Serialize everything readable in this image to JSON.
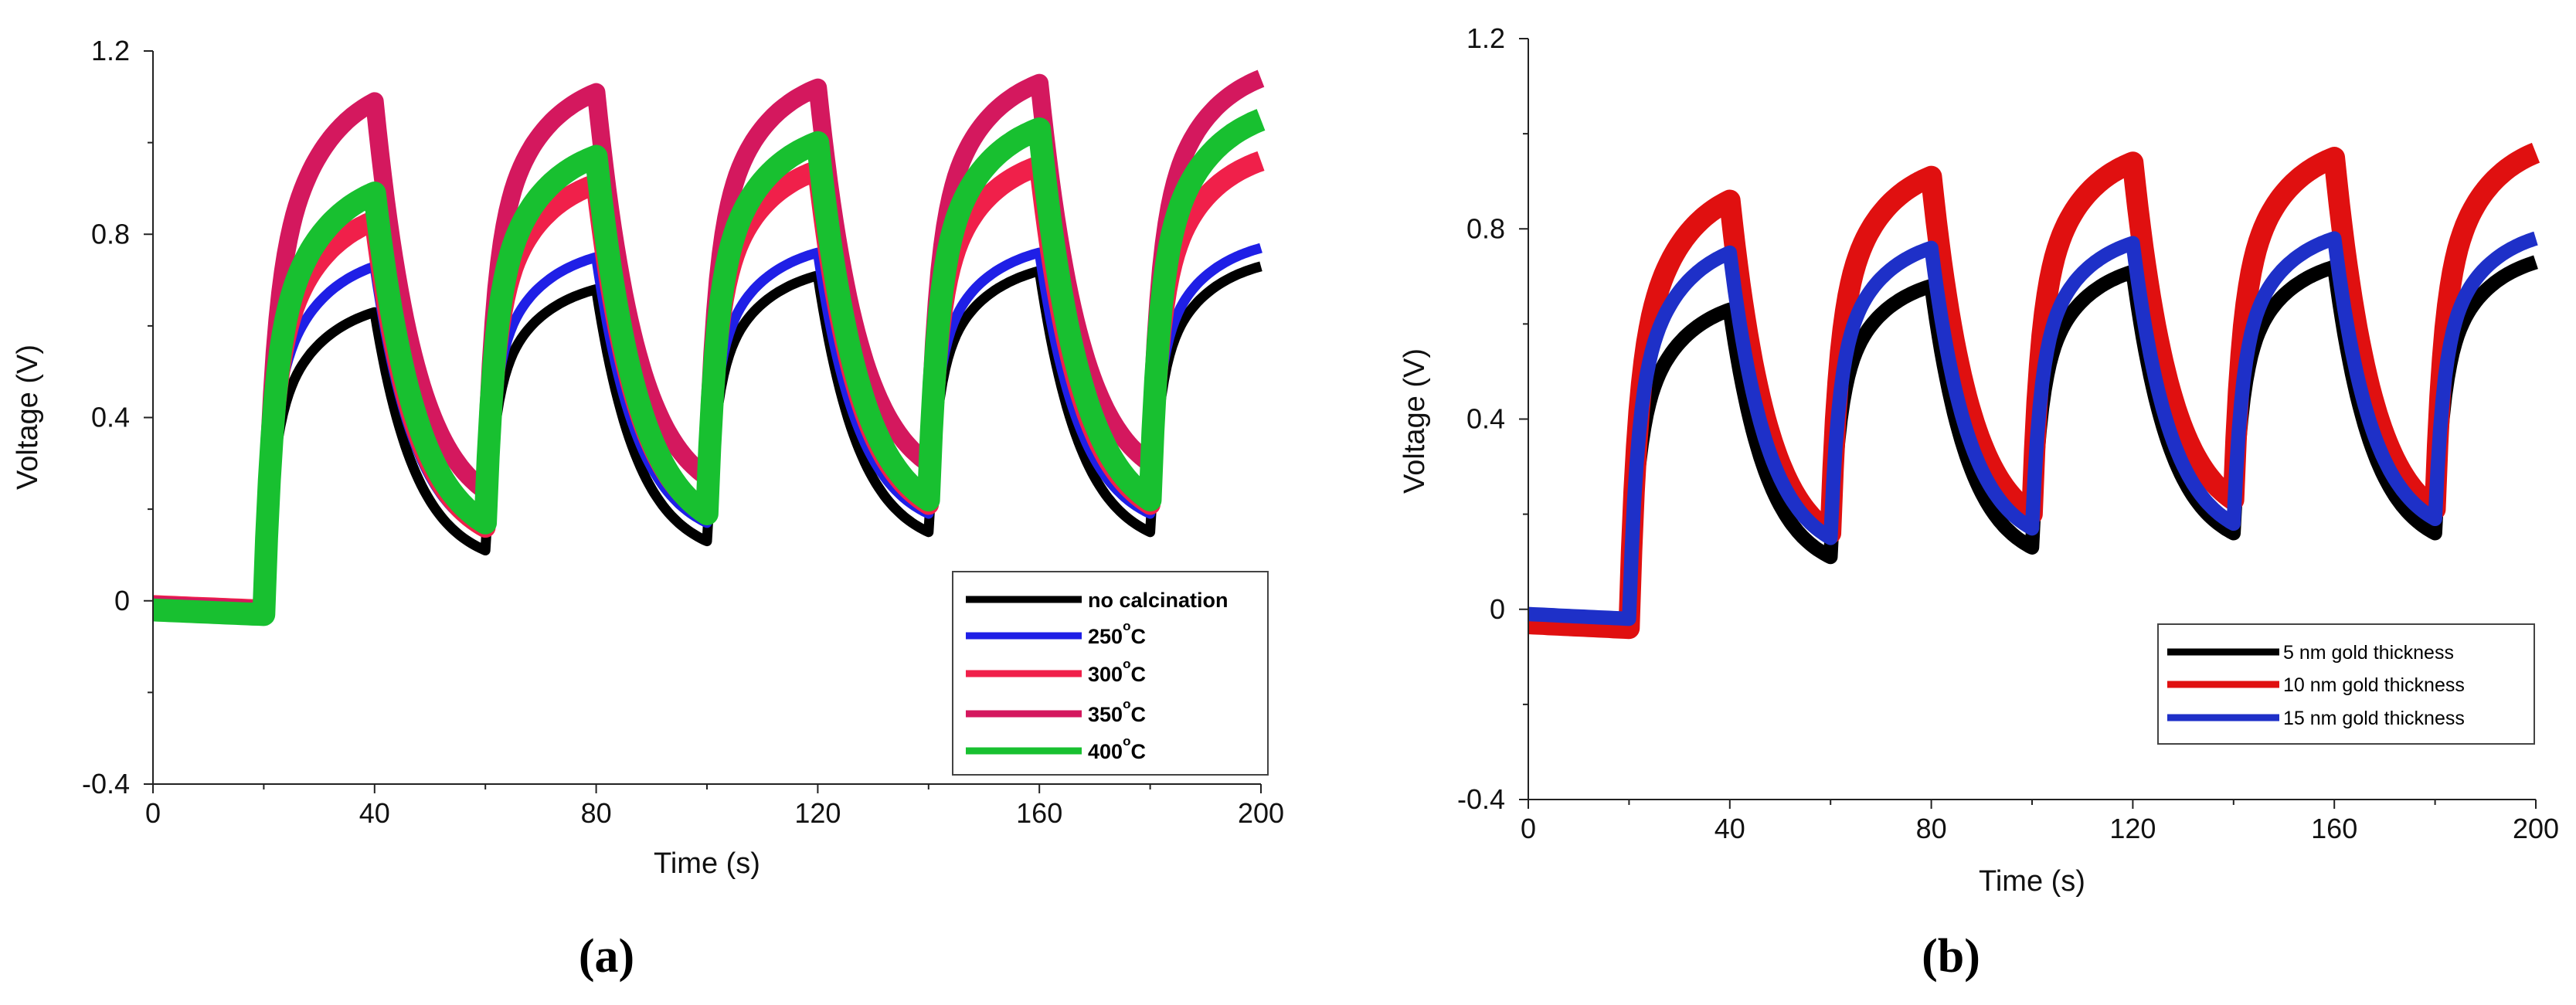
{
  "chart_data": [
    {
      "panel": "a",
      "caption": "(a)",
      "type": "line",
      "xlabel": "Time (s)",
      "ylabel": "Voltage (V)",
      "xlim": [
        0,
        200
      ],
      "ylim": [
        -0.4,
        1.2
      ],
      "xticks": [
        0,
        40,
        80,
        120,
        160,
        200
      ],
      "ytick_labels": [
        "-0.4",
        "0",
        "0.4",
        "0.8",
        "1.2"
      ],
      "ytick_values": [
        -0.4,
        0,
        0.4,
        0.8,
        1.2
      ],
      "legend_position": "bottom-right",
      "legend_degree_symbol": "o",
      "light_on_times": [
        20,
        60,
        100,
        140,
        180
      ],
      "light_off_times": [
        40,
        80,
        120,
        160,
        200
      ],
      "series": [
        {
          "name": "no calcination",
          "label_main": "no calcination",
          "label_unit": "",
          "color": "#000000",
          "base": -0.02,
          "peaks": [
            0.63,
            0.68,
            0.71,
            0.72,
            0.73
          ],
          "troughs": [
            0.11,
            0.13,
            0.15,
            0.15
          ],
          "band": 0.022
        },
        {
          "name": "250°C",
          "label_main": "250",
          "label_unit": "C",
          "color": "#1f1fe6",
          "base": 0.0,
          "peaks": [
            0.73,
            0.75,
            0.76,
            0.76,
            0.77
          ],
          "troughs": [
            0.15,
            0.17,
            0.19,
            0.19
          ],
          "band": 0.022
        },
        {
          "name": "300°C",
          "label_main": "300",
          "label_unit": "C",
          "color": "#f0204a",
          "base": -0.01,
          "peaks": [
            0.83,
            0.91,
            0.94,
            0.95,
            0.96
          ],
          "troughs": [
            0.16,
            0.19,
            0.21,
            0.21
          ],
          "band": 0.045
        },
        {
          "name": "350°C",
          "label_main": "350",
          "label_unit": "C",
          "color": "#d4185e",
          "base": -0.01,
          "peaks": [
            1.09,
            1.11,
            1.12,
            1.13,
            1.14
          ],
          "troughs": [
            0.24,
            0.27,
            0.3,
            0.3
          ],
          "band": 0.04
        },
        {
          "name": "400°C",
          "label_main": "400",
          "label_unit": "C",
          "color": "#18c030",
          "base": -0.02,
          "peaks": [
            0.89,
            0.97,
            1.0,
            1.03,
            1.05
          ],
          "troughs": [
            0.17,
            0.19,
            0.22,
            0.22
          ],
          "band": 0.05
        }
      ]
    },
    {
      "panel": "b",
      "caption": "(b)",
      "type": "line",
      "xlabel": "Time (s)",
      "ylabel": "Voltage (V)",
      "xlim": [
        0,
        200
      ],
      "ylim": [
        -0.4,
        1.2
      ],
      "xticks": [
        0,
        40,
        80,
        120,
        160,
        200
      ],
      "ytick_labels": [
        "-0.4",
        "0",
        "0.4",
        "0.8",
        "1.2"
      ],
      "ytick_values": [
        -0.4,
        0,
        0.4,
        0.8,
        1.2
      ],
      "legend_position": "bottom-right",
      "light_on_times": [
        20,
        60,
        100,
        140,
        180
      ],
      "light_off_times": [
        40,
        80,
        120,
        160,
        200
      ],
      "series": [
        {
          "name": "5 nm gold thickness",
          "color": "#000000",
          "base": -0.02,
          "peaks": [
            0.63,
            0.68,
            0.71,
            0.72,
            0.73
          ],
          "troughs": [
            0.11,
            0.13,
            0.16,
            0.16
          ],
          "band": 0.03
        },
        {
          "name": "10 nm gold thickness",
          "color": "#e01010",
          "base": -0.03,
          "peaks": [
            0.86,
            0.91,
            0.94,
            0.95,
            0.96
          ],
          "troughs": [
            0.16,
            0.2,
            0.23,
            0.21
          ],
          "band": 0.045
        },
        {
          "name": "15 nm gold thickness",
          "color": "#1e30c8",
          "base": -0.01,
          "peaks": [
            0.75,
            0.76,
            0.77,
            0.78,
            0.78
          ],
          "troughs": [
            0.15,
            0.17,
            0.18,
            0.19
          ],
          "band": 0.03
        }
      ]
    }
  ]
}
